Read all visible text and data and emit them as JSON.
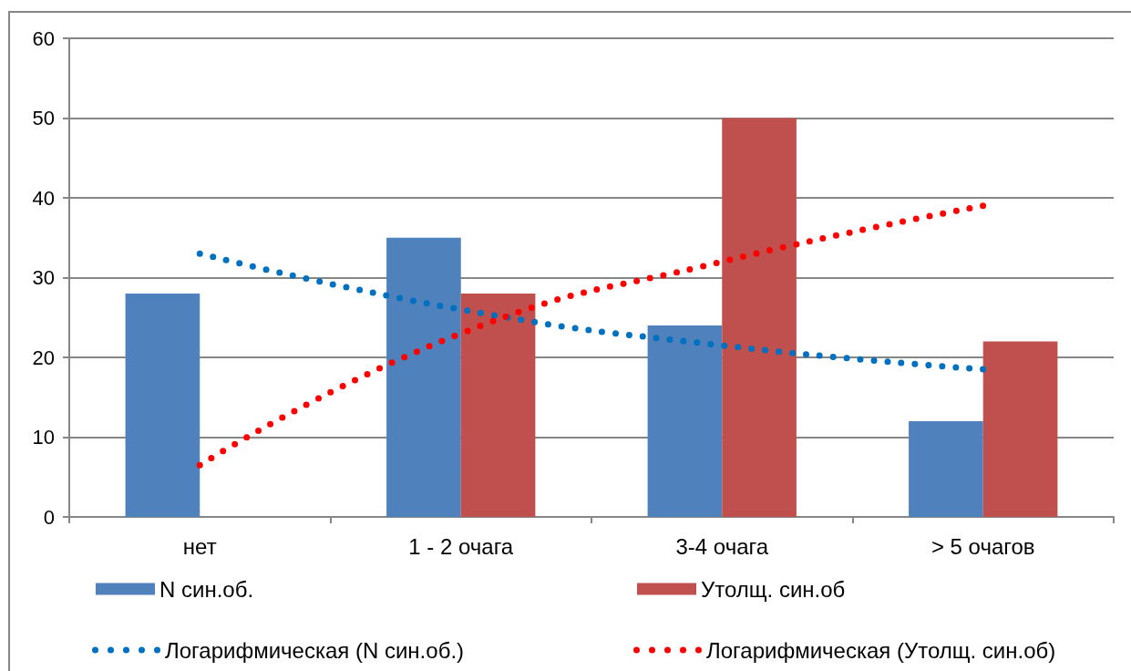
{
  "chart_data": {
    "type": "bar",
    "categories": [
      "нет",
      "1 - 2 очага",
      "3-4 очага",
      "> 5 очагов"
    ],
    "series": [
      {
        "name": "N син.об.",
        "color": "#4f81bd",
        "values": [
          28,
          35,
          24,
          12
        ]
      },
      {
        "name": "Утолщ. син.об",
        "color": "#c0504d",
        "values": [
          0,
          28,
          50,
          22
        ]
      },
      {
        "name": "Логарифмическая (N син.об.)",
        "type": "line",
        "color": "#0070c0",
        "values": [
          33,
          26,
          21.5,
          18.5
        ],
        "line_style": "dotted",
        "marker": "none"
      },
      {
        "name": "Логарифмическая (Утолщ. син.об)",
        "type": "line",
        "color": "#ff0000",
        "values": [
          6.5,
          23,
          32,
          39
        ],
        "line_style": "dotted",
        "marker": "none"
      }
    ],
    "ylim": [
      0,
      60
    ],
    "yticks": [
      0,
      10,
      20,
      30,
      40,
      50,
      60
    ],
    "grid": "y",
    "legend": "bottom"
  }
}
